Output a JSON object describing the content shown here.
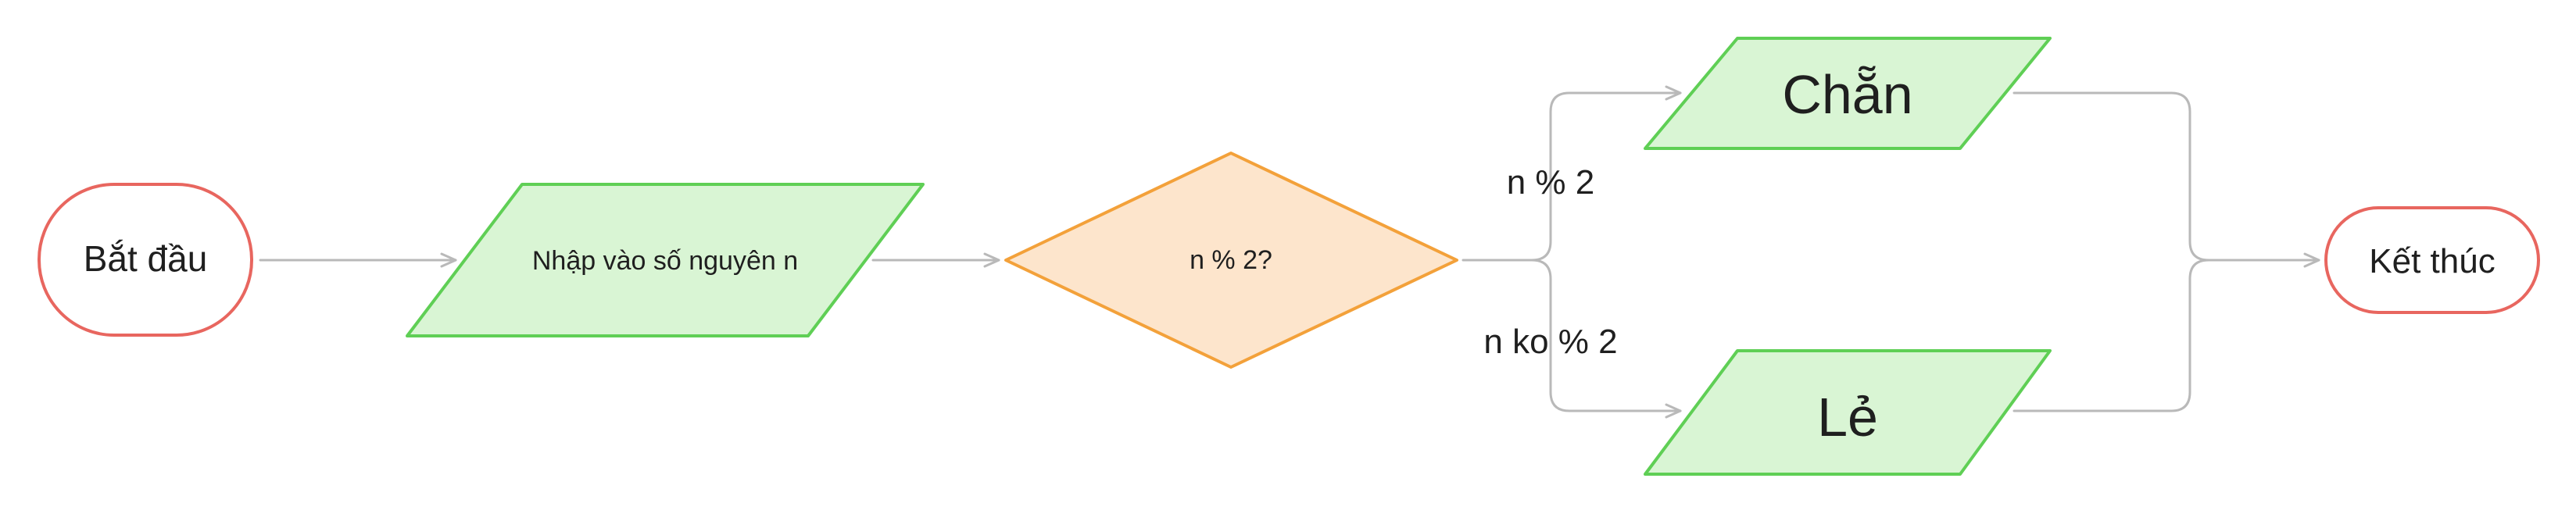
{
  "flowchart": {
    "start": {
      "label": "Bắt đầu"
    },
    "input": {
      "label": "Nhập vào số nguyên n"
    },
    "decision": {
      "label": "n % 2?"
    },
    "branch_even": {
      "edge_label": "n % 2",
      "node_label": "Chẵn"
    },
    "branch_odd": {
      "edge_label": "n ko % 2",
      "node_label": "Lẻ"
    },
    "end": {
      "label": "Kết thúc"
    }
  },
  "colors": {
    "terminal_stroke": "#e8665f",
    "io_fill": "#d9f5d4",
    "io_stroke": "#5fcf55",
    "decision_fill": "#fde5cc",
    "decision_stroke": "#f3a13a",
    "connector": "#b9b9b9",
    "text": "#1f1f1f"
  }
}
